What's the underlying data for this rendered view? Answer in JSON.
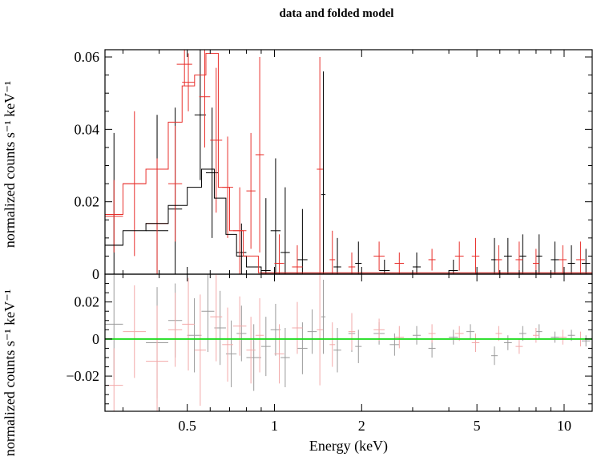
{
  "chart_data": {
    "type": "line",
    "title": "data and folded model",
    "xlabel": "Energy (keV)",
    "xscale": "log",
    "xlim": [
      0.26,
      12.5
    ],
    "x_ticks": [
      {
        "value": 0.5,
        "label": "0.5"
      },
      {
        "value": 1,
        "label": "1"
      },
      {
        "value": 2,
        "label": "2"
      },
      {
        "value": 5,
        "label": "5"
      },
      {
        "value": 10,
        "label": "10"
      }
    ],
    "colors": {
      "black": "#000000",
      "red": "#e8302c",
      "green": "#22dd22",
      "black_faint": "#9a9a9a",
      "red_faint": "#f2a8a8"
    },
    "panels": [
      {
        "name": "spectrum",
        "ylabel": "normalized counts s⁻¹ keV⁻¹",
        "ylim": [
          0,
          0.062
        ],
        "y_ticks": [
          {
            "value": 0,
            "label": "0"
          },
          {
            "value": 0.02,
            "label": "0.02"
          },
          {
            "value": 0.04,
            "label": "0.04"
          },
          {
            "value": 0.06,
            "label": "0.06"
          }
        ],
        "models": [
          {
            "color": "black",
            "bins": [
              [
                0.26,
                0.3,
                0.008
              ],
              [
                0.3,
                0.36,
                0.012
              ],
              [
                0.36,
                0.43,
                0.014
              ],
              [
                0.43,
                0.5,
                0.019
              ],
              [
                0.5,
                0.56,
                0.024
              ],
              [
                0.56,
                0.62,
                0.029
              ],
              [
                0.62,
                0.68,
                0.021
              ],
              [
                0.68,
                0.74,
                0.011
              ],
              [
                0.74,
                0.8,
                0.005
              ],
              [
                0.8,
                0.9,
                0.002
              ],
              [
                0.9,
                12.5,
                0.0003
              ]
            ]
          },
          {
            "color": "red",
            "bins": [
              [
                0.26,
                0.3,
                0.0165
              ],
              [
                0.3,
                0.36,
                0.025
              ],
              [
                0.36,
                0.43,
                0.029
              ],
              [
                0.43,
                0.48,
                0.042
              ],
              [
                0.48,
                0.53,
                0.052
              ],
              [
                0.53,
                0.58,
                0.055
              ],
              [
                0.58,
                0.64,
                0.061
              ],
              [
                0.64,
                0.7,
                0.024
              ],
              [
                0.7,
                0.78,
                0.012
              ],
              [
                0.78,
                0.88,
                0.005
              ],
              [
                0.88,
                12.5,
                0.0004
              ]
            ]
          }
        ],
        "data_series": [
          {
            "color": "black",
            "points": [
              [
                0.26,
                0.3,
                0.008,
                0.031
              ],
              [
                0.36,
                0.43,
                0.012,
                0.032
              ],
              [
                0.43,
                0.48,
                0.018,
                0.028
              ],
              [
                0.53,
                0.58,
                0.044,
                0.018
              ],
              [
                0.58,
                0.64,
                0.028,
                0.018
              ],
              [
                0.74,
                0.8,
                0.006,
                0.008
              ],
              [
                0.9,
                0.97,
                0.001,
                0.02
              ],
              [
                0.97,
                1.05,
                0.012,
                0.02
              ],
              [
                1.05,
                1.13,
                0.006,
                0.018
              ],
              [
                1.2,
                1.3,
                0.004,
                0.014
              ],
              [
                1.45,
                1.5,
                0.022,
                0.034
              ],
              [
                1.6,
                1.7,
                0.002,
                0.008
              ],
              [
                1.9,
                2.0,
                0.003,
                0.006
              ],
              [
                2.3,
                2.5,
                0.001,
                0.003
              ],
              [
                3.0,
                3.2,
                0.002,
                0.004
              ],
              [
                4.0,
                4.3,
                0.001,
                0.003
              ],
              [
                5.6,
                5.9,
                0.004,
                0.006
              ],
              [
                6.2,
                6.6,
                0.005,
                0.005
              ],
              [
                7.0,
                7.4,
                0.005,
                0.006
              ],
              [
                8.0,
                8.4,
                0.005,
                0.006
              ],
              [
                9.0,
                9.6,
                0.004,
                0.005
              ],
              [
                10.3,
                10.9,
                0.003,
                0.005
              ],
              [
                11.5,
                12.3,
                0.003,
                0.004
              ]
            ]
          },
          {
            "color": "red",
            "points": [
              [
                0.26,
                0.3,
                0.016,
                0.01
              ],
              [
                0.3,
                0.36,
                0.025,
                0.02
              ],
              [
                0.36,
                0.43,
                0.014,
                0.018
              ],
              [
                0.43,
                0.48,
                0.025,
                0.016
              ],
              [
                0.46,
                0.52,
                0.058,
                0.006
              ],
              [
                0.48,
                0.53,
                0.053,
                0.008
              ],
              [
                0.55,
                0.6,
                0.049,
                0.014
              ],
              [
                0.6,
                0.66,
                0.037,
                0.02
              ],
              [
                0.66,
                0.72,
                0.024,
                0.014
              ],
              [
                0.72,
                0.8,
                0.012,
                0.012
              ],
              [
                0.8,
                0.86,
                0.023,
                0.016
              ],
              [
                0.86,
                0.92,
                0.033,
                0.027
              ],
              [
                1.0,
                1.08,
                0.003,
                0.008
              ],
              [
                1.15,
                1.25,
                0.002,
                0.006
              ],
              [
                1.4,
                1.47,
                0.029,
                0.031
              ],
              [
                1.55,
                1.62,
                0.004,
                0.008
              ],
              [
                1.8,
                1.9,
                0.002,
                0.004
              ],
              [
                2.2,
                2.4,
                0.005,
                0.004
              ],
              [
                2.6,
                2.8,
                0.003,
                0.003
              ],
              [
                3.4,
                3.6,
                0.004,
                0.003
              ],
              [
                4.2,
                4.5,
                0.005,
                0.004
              ],
              [
                4.8,
                5.1,
                0.005,
                0.005
              ],
              [
                5.8,
                6.1,
                0.004,
                0.004
              ],
              [
                6.8,
                7.2,
                0.004,
                0.005
              ],
              [
                7.8,
                8.2,
                0.003,
                0.004
              ],
              [
                9.6,
                10.2,
                0.004,
                0.004
              ],
              [
                11.0,
                11.8,
                0.004,
                0.005
              ]
            ]
          }
        ]
      },
      {
        "name": "residuals",
        "ylabel": "normalized counts s⁻¹ keV⁻¹",
        "ylim": [
          -0.039,
          0.035
        ],
        "y_ticks": [
          {
            "value": -0.02,
            "label": "−0.02"
          },
          {
            "value": 0,
            "label": "0"
          },
          {
            "value": 0.02,
            "label": "0.02"
          }
        ],
        "zero_line": {
          "value": 0,
          "color": "green"
        },
        "residual_series": [
          {
            "color": "black_faint",
            "points": [
              [
                0.26,
                0.3,
                0.008,
                0.03
              ],
              [
                0.36,
                0.43,
                -0.002,
                0.03
              ],
              [
                0.43,
                0.48,
                0.01,
                0.02
              ],
              [
                0.5,
                0.56,
                0.002,
                0.02
              ],
              [
                0.56,
                0.62,
                0.015,
                0.022
              ],
              [
                0.62,
                0.68,
                0.006,
                0.02
              ],
              [
                0.68,
                0.74,
                -0.008,
                0.018
              ],
              [
                0.74,
                0.8,
                0.003,
                0.015
              ],
              [
                0.8,
                0.9,
                -0.01,
                0.018
              ],
              [
                0.9,
                0.97,
                -0.004,
                0.016
              ],
              [
                0.97,
                1.05,
                0.005,
                0.014
              ],
              [
                1.05,
                1.13,
                -0.01,
                0.016
              ],
              [
                1.2,
                1.3,
                -0.005,
                0.014
              ],
              [
                1.3,
                1.4,
                0.004,
                0.012
              ],
              [
                1.45,
                1.5,
                0.012,
                0.02
              ],
              [
                1.6,
                1.7,
                -0.006,
                0.012
              ],
              [
                1.8,
                1.9,
                0.003,
                0.01
              ],
              [
                1.9,
                2.0,
                -0.004,
                0.009
              ],
              [
                2.2,
                2.4,
                0.003,
                0.006
              ],
              [
                2.5,
                2.7,
                -0.003,
                0.006
              ],
              [
                3.0,
                3.2,
                0.002,
                0.005
              ],
              [
                3.4,
                3.6,
                -0.005,
                0.005
              ],
              [
                4.0,
                4.3,
                0.001,
                0.004
              ],
              [
                4.6,
                4.9,
                0.004,
                0.004
              ],
              [
                5.6,
                5.9,
                -0.009,
                0.005
              ],
              [
                6.2,
                6.6,
                -0.002,
                0.004
              ],
              [
                7.0,
                7.4,
                0.003,
                0.004
              ],
              [
                8.0,
                8.4,
                0.004,
                0.004
              ],
              [
                9.0,
                9.6,
                0.001,
                0.003
              ],
              [
                10.3,
                10.9,
                0.002,
                0.003
              ],
              [
                11.5,
                12.3,
                -0.001,
                0.003
              ]
            ]
          },
          {
            "color": "red_faint",
            "points": [
              [
                0.26,
                0.3,
                -0.025,
                0.02
              ],
              [
                0.3,
                0.36,
                0.004,
                0.025
              ],
              [
                0.36,
                0.43,
                -0.012,
                0.03
              ],
              [
                0.43,
                0.48,
                0.005,
                0.02
              ],
              [
                0.48,
                0.53,
                0.008,
                0.025
              ],
              [
                0.53,
                0.58,
                -0.006,
                0.03
              ],
              [
                0.6,
                0.66,
                0.012,
                0.024
              ],
              [
                0.66,
                0.72,
                -0.003,
                0.02
              ],
              [
                0.72,
                0.8,
                0.007,
                0.016
              ],
              [
                0.8,
                0.86,
                -0.006,
                0.018
              ],
              [
                0.86,
                0.92,
                0.002,
                0.02
              ],
              [
                1.0,
                1.08,
                -0.008,
                0.016
              ],
              [
                1.15,
                1.25,
                0.006,
                0.014
              ],
              [
                1.4,
                1.47,
                0.005,
                0.03
              ],
              [
                1.55,
                1.62,
                -0.003,
                0.012
              ],
              [
                1.8,
                1.9,
                0.004,
                0.01
              ],
              [
                2.2,
                2.4,
                0.005,
                0.006
              ],
              [
                2.6,
                2.8,
                0.001,
                0.006
              ],
              [
                3.4,
                3.6,
                0.003,
                0.005
              ],
              [
                4.2,
                4.5,
                0.003,
                0.004
              ],
              [
                4.8,
                5.1,
                -0.002,
                0.005
              ],
              [
                5.8,
                6.1,
                0.003,
                0.004
              ],
              [
                6.8,
                7.2,
                -0.004,
                0.004
              ],
              [
                7.8,
                8.2,
                0.002,
                0.004
              ],
              [
                9.6,
                10.2,
                0.001,
                0.004
              ],
              [
                11.0,
                11.8,
                0.0,
                0.004
              ]
            ]
          }
        ]
      }
    ]
  }
}
